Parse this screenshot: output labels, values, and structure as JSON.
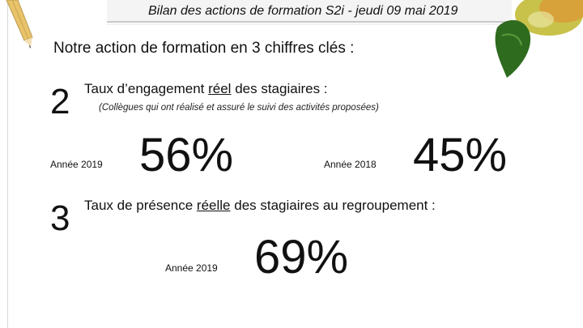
{
  "header": {
    "title": "Bilan des actions de formation S2i - jeudi 09 mai 2019"
  },
  "section": {
    "title": "Notre action de formation en 3 chiffres clés :"
  },
  "items": [
    {
      "number": "2",
      "label_before": "Taux d’engagement ",
      "label_underlined": "réel",
      "label_after": " des stagiaires :",
      "note": "(Collègues qui ont réalisé et assuré le suivi des activités proposées)",
      "stats": [
        {
          "year": "Année 2019",
          "value": "56%"
        },
        {
          "year": "Année 2018",
          "value": "45%"
        }
      ]
    },
    {
      "number": "3",
      "label_before": "Taux de présence ",
      "label_underlined": "réelle",
      "label_after": " des stagiaires au regroupement :",
      "stats": [
        {
          "year": "Année 2019",
          "value": "69%"
        }
      ]
    }
  ],
  "decor": {
    "pencil_icon": "pencil-icon",
    "notebook_icon": "notebook-icon",
    "apple_icon": "apple-icon",
    "colors": {
      "apple": "#7d9a2a",
      "leaf": "#2f6b1f",
      "pencil": "#e9c36a"
    }
  }
}
